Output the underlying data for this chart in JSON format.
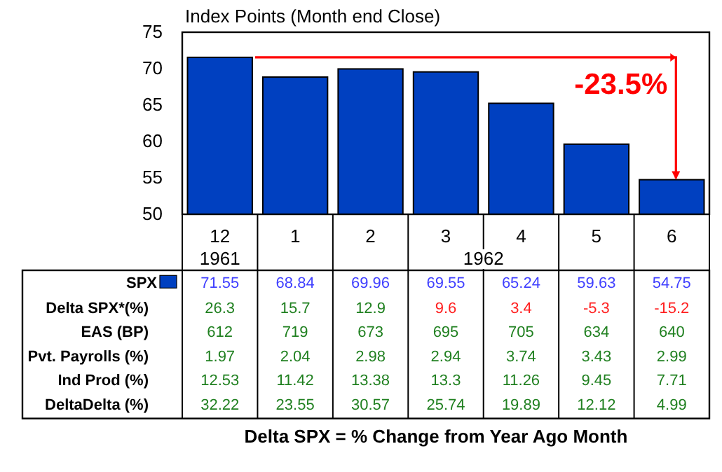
{
  "chart_data": [
    {
      "type": "bar",
      "title": "Index Points (Month end Close)",
      "categories": [
        "12",
        "1",
        "2",
        "3",
        "4",
        "5",
        "6"
      ],
      "series": [
        {
          "name": "SPX",
          "color": "#0040c0",
          "values": [
            71.55,
            68.84,
            69.96,
            69.55,
            65.24,
            59.63,
            54.75
          ]
        }
      ],
      "ylim": [
        50,
        75
      ],
      "yticks": [
        50,
        55,
        60,
        65,
        70,
        75
      ],
      "data_labels": true,
      "legend": "bottom left",
      "annotations": [
        "1961",
        "1962",
        "-23.5%"
      ]
    },
    {
      "type": "other",
      "annotations": [
        "Delta SPX*(%)",
        "26.3",
        "15.7",
        "12.9",
        "9.6",
        "3.4",
        "-5.3",
        "-15.2",
        "EAS (BP)",
        "612",
        "719",
        "673",
        "695",
        "705",
        "634",
        "640",
        "Pvt. Payrolls (%)",
        "1.97",
        "2.04",
        "2.98",
        "2.94",
        "3.74",
        "3.43",
        "2.99",
        "Ind Prod (%)",
        "12.53",
        "11.42",
        "13.38",
        "13.3",
        "11.26",
        "9.45",
        "7.71",
        "DeltaDelta (%)",
        "32.22",
        "23.55",
        "30.57",
        "25.74",
        "19.89",
        "12.12",
        "4.99",
        "Delta SPX = % Change from Year Ago Month"
      ],
      "colors": [
        "#000000",
        "#208020",
        "#208020",
        "#208020",
        "#ff2020",
        "#ff2020",
        "#ff2020",
        "#ff2020",
        "#000000",
        "#208020",
        "#208020",
        "#208020",
        "#208020",
        "#208020",
        "#208020",
        "#208020",
        "#000000",
        "#208020",
        "#208020",
        "#208020",
        "#208020",
        "#208020",
        "#208020",
        "#208020",
        "#000000",
        "#208020",
        "#208020",
        "#208020",
        "#208020",
        "#208020",
        "#208020",
        "#208020",
        "#000000",
        "#208020",
        "#208020",
        "#208020",
        "#208020",
        "#208020",
        "#208020",
        "#208020",
        "#000000"
      ]
    }
  ]
}
